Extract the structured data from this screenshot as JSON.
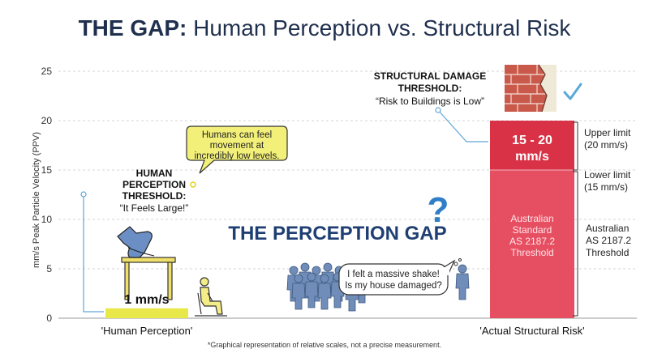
{
  "title": {
    "bold": "THE GAP:",
    "rest": " Human Perception vs. Structural Risk"
  },
  "chart_data": {
    "type": "bar",
    "ylabel": "mm/s Peak Particle Velocity (PPV)",
    "ylim": [
      0,
      25
    ],
    "yticks": [
      0,
      5,
      10,
      15,
      20,
      25
    ],
    "categories": [
      "'Human Perception'",
      "'Actual Structural Risk'"
    ],
    "human_value": 1,
    "human_value_label": "1 mm/s",
    "structural_lower": 15,
    "structural_upper": 20,
    "structural_range_label_line1": "15 - 20",
    "structural_range_label_line2": "mm/s",
    "standard_label": [
      "Australian",
      "Standard",
      "AS 2187.2",
      "Threshold"
    ],
    "grid": true
  },
  "annotations": {
    "human_threshold": [
      "HUMAN",
      "PERCEPTION",
      "THRESHOLD:",
      "“It Feels Large!”"
    ],
    "humans_bubble": [
      "Humans can feel",
      "movement at",
      "incredibly low levels."
    ],
    "damage_threshold": [
      "STRUCTURAL DAMAGE",
      "THRESHOLD:",
      "“Risk to Buildings is Low”"
    ],
    "gap_label": "THE PERCEPTION GAP",
    "question_mark": "?",
    "shake_bubble": [
      "I felt a massive shake!",
      "Is my house damaged?"
    ],
    "upper_limit": [
      "Upper limit",
      "(20 mm/s)"
    ],
    "lower_limit": [
      "Lower limit",
      "(15 mm/s)"
    ],
    "standard_side": [
      "Australian",
      "AS 2187.2",
      "Threshold"
    ],
    "footnote": "*Graphical representation of relative scales, not a precise measurement."
  },
  "colors": {
    "title": "#1f2f4e",
    "axis_text": "#333333",
    "human_bar": "#e8e84a",
    "risk_bar": "#e64f62",
    "risk_bar_top": "#d93146",
    "gap_text": "#1f3f73",
    "speed_lines": "#7fb9e6",
    "figures": "#6f8db8",
    "leader": "#5fa7d6",
    "brick": "#c9594a",
    "check": "#5aa9d8"
  },
  "icons": [
    "hand-on-table-icon",
    "seated-person-icon",
    "crowd-icon",
    "brick-wall-icon",
    "checkmark-icon",
    "question-mark-icon"
  ]
}
